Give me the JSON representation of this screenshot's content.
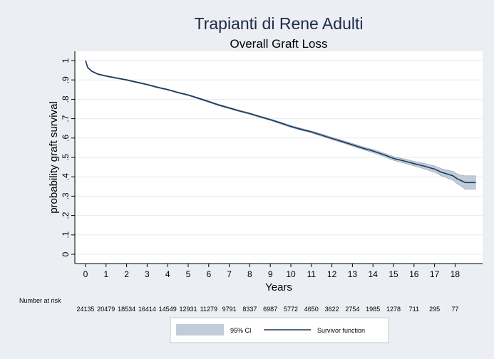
{
  "chart_data": {
    "type": "line",
    "title": "Trapianti di Rene Adulti",
    "subtitle": "Overall Graft Loss",
    "xlabel": "Years",
    "ylabel": "probability graft survival",
    "xlim": [
      0,
      19
    ],
    "ylim": [
      0,
      1
    ],
    "x_ticks": [
      0,
      1,
      2,
      3,
      4,
      5,
      6,
      7,
      8,
      9,
      10,
      11,
      12,
      13,
      14,
      15,
      16,
      17,
      18
    ],
    "y_ticks": [
      0,
      0.1,
      0.2,
      0.3,
      0.4,
      0.5,
      0.6,
      0.7,
      0.8,
      0.9,
      1
    ],
    "y_tick_labels": [
      "0",
      ".1",
      ".2",
      ".3",
      ".4",
      ".5",
      ".6",
      ".7",
      ".8",
      ".9",
      "1"
    ],
    "grid": true,
    "series": [
      {
        "name": "Survivor function",
        "color": "#1a3a5c",
        "x": [
          0,
          0.1,
          0.3,
          0.6,
          1,
          1.5,
          2,
          2.5,
          3,
          3.5,
          4,
          4.5,
          5,
          5.5,
          6,
          6.5,
          7,
          7.5,
          8,
          8.5,
          9,
          9.5,
          10,
          10.5,
          11,
          11.5,
          12,
          12.5,
          13,
          13.5,
          14,
          14.5,
          15,
          15.5,
          16,
          16.5,
          17,
          17.3,
          17.6,
          17.9,
          18.1,
          18.3,
          18.5,
          19
        ],
        "y": [
          1.0,
          0.965,
          0.945,
          0.93,
          0.92,
          0.91,
          0.9,
          0.888,
          0.876,
          0.862,
          0.85,
          0.835,
          0.822,
          0.805,
          0.788,
          0.77,
          0.755,
          0.74,
          0.726,
          0.71,
          0.695,
          0.678,
          0.66,
          0.645,
          0.632,
          0.615,
          0.598,
          0.582,
          0.565,
          0.548,
          0.533,
          0.515,
          0.495,
          0.482,
          0.468,
          0.455,
          0.44,
          0.425,
          0.415,
          0.405,
          0.39,
          0.38,
          0.37,
          0.37
        ]
      }
    ],
    "ci": {
      "name": "95% CI",
      "color": "#c2ccd8",
      "upper": [
        1.0,
        0.968,
        0.948,
        0.933,
        0.923,
        0.913,
        0.903,
        0.891,
        0.879,
        0.865,
        0.853,
        0.838,
        0.825,
        0.809,
        0.792,
        0.774,
        0.759,
        0.744,
        0.73,
        0.714,
        0.699,
        0.683,
        0.665,
        0.65,
        0.637,
        0.621,
        0.604,
        0.588,
        0.572,
        0.555,
        0.541,
        0.524,
        0.505,
        0.493,
        0.48,
        0.469,
        0.456,
        0.443,
        0.435,
        0.428,
        0.415,
        0.408,
        0.405,
        0.405
      ],
      "lower": [
        1.0,
        0.962,
        0.942,
        0.927,
        0.917,
        0.907,
        0.897,
        0.885,
        0.873,
        0.859,
        0.847,
        0.832,
        0.819,
        0.801,
        0.784,
        0.766,
        0.751,
        0.736,
        0.722,
        0.706,
        0.691,
        0.673,
        0.655,
        0.64,
        0.627,
        0.609,
        0.592,
        0.576,
        0.558,
        0.541,
        0.525,
        0.506,
        0.485,
        0.471,
        0.456,
        0.441,
        0.424,
        0.407,
        0.395,
        0.382,
        0.365,
        0.352,
        0.335,
        0.335
      ]
    },
    "number_at_risk_label": "Number at risk",
    "number_at_risk": [
      {
        "x": 0,
        "n": "24135"
      },
      {
        "x": 1,
        "n": "20479"
      },
      {
        "x": 2,
        "n": "18534"
      },
      {
        "x": 3,
        "n": "16414"
      },
      {
        "x": 4,
        "n": "14549"
      },
      {
        "x": 5,
        "n": "12931"
      },
      {
        "x": 6,
        "n": "11279"
      },
      {
        "x": 7,
        "n": "9791"
      },
      {
        "x": 8,
        "n": "8337"
      },
      {
        "x": 9,
        "n": "6987"
      },
      {
        "x": 10,
        "n": "5772"
      },
      {
        "x": 11,
        "n": "4650"
      },
      {
        "x": 12,
        "n": "3622"
      },
      {
        "x": 13,
        "n": "2754"
      },
      {
        "x": 14,
        "n": "1985"
      },
      {
        "x": 15,
        "n": "1278"
      },
      {
        "x": 16,
        "n": "711"
      },
      {
        "x": 17,
        "n": "295"
      },
      {
        "x": 18,
        "n": "77"
      }
    ],
    "legend": {
      "position": "bottom",
      "items": [
        {
          "label": "95% CI",
          "kind": "area"
        },
        {
          "label": "Survivor function",
          "kind": "line"
        }
      ]
    }
  }
}
